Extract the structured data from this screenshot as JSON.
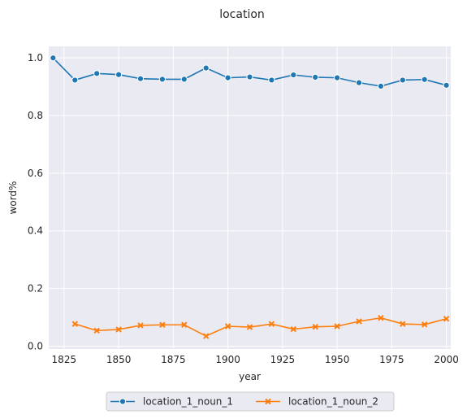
{
  "chart_data": {
    "type": "line",
    "title": "location",
    "xlabel": "year",
    "ylabel": "word%",
    "xlim": [
      1818,
      2002
    ],
    "ylim": [
      -0.01,
      1.04
    ],
    "xticks": [
      1825,
      1850,
      1875,
      1900,
      1925,
      1950,
      1975,
      2000
    ],
    "yticks": [
      0.0,
      0.2,
      0.4,
      0.6,
      0.8,
      1.0
    ],
    "xtick_labels": [
      "1825",
      "1850",
      "1875",
      "1900",
      "1925",
      "1950",
      "1975",
      "2000"
    ],
    "ytick_labels": [
      "0.0",
      "0.2",
      "0.4",
      "0.6",
      "0.8",
      "1.0"
    ],
    "grid": true,
    "legend_position": "bottom-center",
    "series": [
      {
        "name": "location_1_noun_1",
        "color": "#1f77b4",
        "marker": "circle",
        "x": [
          1820,
          1830,
          1840,
          1850,
          1860,
          1870,
          1880,
          1890,
          1900,
          1910,
          1920,
          1930,
          1940,
          1950,
          1960,
          1970,
          1980,
          1990,
          2000
        ],
        "y": [
          1.0,
          0.923,
          0.946,
          0.942,
          0.928,
          0.926,
          0.926,
          0.965,
          0.931,
          0.934,
          0.923,
          0.941,
          0.933,
          0.931,
          0.914,
          0.902,
          0.923,
          0.925,
          0.905
        ]
      },
      {
        "name": "location_1_noun_2",
        "color": "#ff7f0e",
        "marker": "x",
        "x": [
          1830,
          1840,
          1850,
          1860,
          1870,
          1880,
          1890,
          1900,
          1910,
          1920,
          1930,
          1940,
          1950,
          1960,
          1970,
          1980,
          1990,
          2000
        ],
        "y": [
          0.077,
          0.054,
          0.058,
          0.072,
          0.074,
          0.074,
          0.035,
          0.069,
          0.066,
          0.077,
          0.059,
          0.067,
          0.069,
          0.086,
          0.098,
          0.077,
          0.075,
          0.095
        ]
      }
    ]
  }
}
